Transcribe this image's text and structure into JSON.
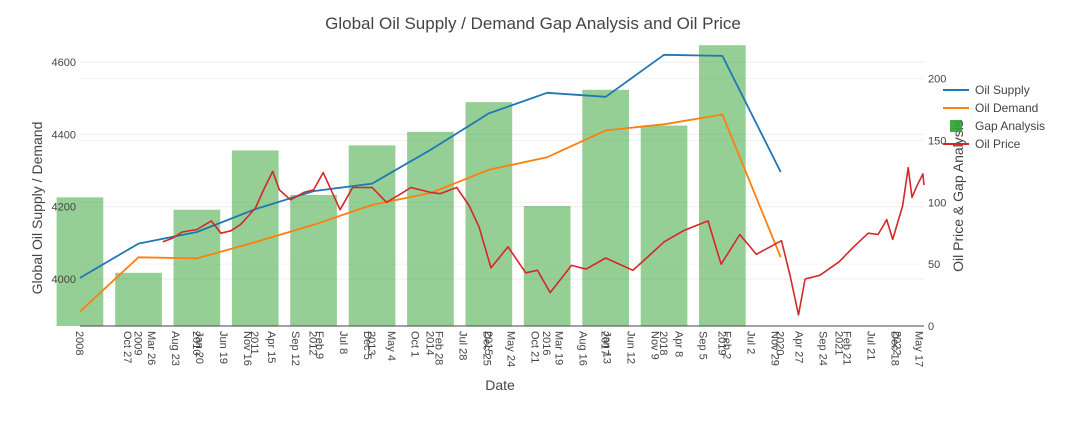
{
  "chart_data": {
    "type": "bar+line",
    "title": "Global Oil Supply / Demand Gap Analysis and Oil Price",
    "xlabel": "Date",
    "ylabel_left": "Global Oil Supply / Demand",
    "ylabel_right": "Oil Price & Gap Analysis",
    "x_range": [
      "2008-01-01",
      "2022-06-15"
    ],
    "y_left_range": [
      3870,
      4650
    ],
    "y_left_ticks": [
      4000,
      4200,
      4400,
      4600
    ],
    "y_right_range": [
      0,
      228
    ],
    "y_right_ticks": [
      0,
      50,
      100,
      150,
      200
    ],
    "grid": true,
    "legend_position": "top-right",
    "x_tick_labels": [
      {
        "date": "2008-01-01",
        "label": "2008"
      },
      {
        "date": "2008-10-27",
        "label": "Oct 27"
      },
      {
        "date": "2009-01-01",
        "label": "2009"
      },
      {
        "date": "2009-03-26",
        "label": "Mar 26"
      },
      {
        "date": "2009-08-23",
        "label": "Aug 23"
      },
      {
        "date": "2010-01-01",
        "label": "2010"
      },
      {
        "date": "2010-01-20",
        "label": "Jan 20"
      },
      {
        "date": "2010-06-19",
        "label": "Jun 19"
      },
      {
        "date": "2010-11-16",
        "label": "Nov 16"
      },
      {
        "date": "2011-01-01",
        "label": "2011"
      },
      {
        "date": "2011-04-15",
        "label": "Apr 15"
      },
      {
        "date": "2011-09-12",
        "label": "Sep 12"
      },
      {
        "date": "2012-01-01",
        "label": "2012"
      },
      {
        "date": "2012-02-09",
        "label": "Feb 9"
      },
      {
        "date": "2012-07-08",
        "label": "Jul 8"
      },
      {
        "date": "2012-12-05",
        "label": "Dec 5"
      },
      {
        "date": "2013-01-01",
        "label": "2013"
      },
      {
        "date": "2013-05-04",
        "label": "May 4"
      },
      {
        "date": "2013-10-01",
        "label": "Oct 1"
      },
      {
        "date": "2014-01-01",
        "label": "2014"
      },
      {
        "date": "2014-02-28",
        "label": "Feb 28"
      },
      {
        "date": "2014-07-28",
        "label": "Jul 28"
      },
      {
        "date": "2014-12-25",
        "label": "Dec 25"
      },
      {
        "date": "2015-01-01",
        "label": "2015"
      },
      {
        "date": "2015-05-24",
        "label": "May 24"
      },
      {
        "date": "2015-10-21",
        "label": "Oct 21"
      },
      {
        "date": "2016-01-01",
        "label": "2016"
      },
      {
        "date": "2016-03-19",
        "label": "Mar 19"
      },
      {
        "date": "2016-08-16",
        "label": "Aug 16"
      },
      {
        "date": "2017-01-01",
        "label": "2017"
      },
      {
        "date": "2017-01-13",
        "label": "Jan 13"
      },
      {
        "date": "2017-06-12",
        "label": "Jun 12"
      },
      {
        "date": "2017-11-09",
        "label": "Nov 9"
      },
      {
        "date": "2018-01-01",
        "label": "2018"
      },
      {
        "date": "2018-04-08",
        "label": "Apr 8"
      },
      {
        "date": "2018-09-05",
        "label": "Sep 5"
      },
      {
        "date": "2019-01-01",
        "label": "2019"
      },
      {
        "date": "2019-02-02",
        "label": "Feb 2"
      },
      {
        "date": "2019-07-02",
        "label": "Jul 2"
      },
      {
        "date": "2019-11-29",
        "label": "Nov 29"
      },
      {
        "date": "2020-01-01",
        "label": "2020"
      },
      {
        "date": "2020-04-27",
        "label": "Apr 27"
      },
      {
        "date": "2020-09-24",
        "label": "Sep 24"
      },
      {
        "date": "2021-01-01",
        "label": "2021"
      },
      {
        "date": "2021-02-21",
        "label": "Feb 21"
      },
      {
        "date": "2021-07-21",
        "label": "Jul 21"
      },
      {
        "date": "2021-12-18",
        "label": "Dec 18"
      },
      {
        "date": "2022-01-01",
        "label": "2022"
      },
      {
        "date": "2022-05-17",
        "label": "May 17"
      }
    ],
    "series": [
      {
        "name": "Oil Supply",
        "kind": "line",
        "axis": "left",
        "color": "#1f77b4",
        "points": [
          {
            "x": "2008-01-01",
            "y": 4003
          },
          {
            "x": "2009-01-01",
            "y": 4098
          },
          {
            "x": "2010-01-01",
            "y": 4130
          },
          {
            "x": "2011-01-01",
            "y": 4193
          },
          {
            "x": "2012-01-01",
            "y": 4243
          },
          {
            "x": "2013-01-01",
            "y": 4264
          },
          {
            "x": "2014-01-01",
            "y": 4357
          },
          {
            "x": "2015-01-01",
            "y": 4458
          },
          {
            "x": "2016-01-01",
            "y": 4515
          },
          {
            "x": "2017-01-01",
            "y": 4504
          },
          {
            "x": "2018-01-01",
            "y": 4620
          },
          {
            "x": "2019-01-01",
            "y": 4617
          },
          {
            "x": "2020-01-01",
            "y": 4296
          }
        ]
      },
      {
        "name": "Oil Demand",
        "kind": "line",
        "axis": "left",
        "color": "#ff7f0e",
        "points": [
          {
            "x": "2008-01-01",
            "y": 3910
          },
          {
            "x": "2009-01-01",
            "y": 4060
          },
          {
            "x": "2010-01-01",
            "y": 4057
          },
          {
            "x": "2011-01-01",
            "y": 4102
          },
          {
            "x": "2012-01-01",
            "y": 4150
          },
          {
            "x": "2013-01-01",
            "y": 4205
          },
          {
            "x": "2014-01-01",
            "y": 4238
          },
          {
            "x": "2015-01-01",
            "y": 4302
          },
          {
            "x": "2016-01-01",
            "y": 4337
          },
          {
            "x": "2017-01-01",
            "y": 4411
          },
          {
            "x": "2018-01-01",
            "y": 4428
          },
          {
            "x": "2019-01-01",
            "y": 4455
          },
          {
            "x": "2020-01-01",
            "y": 4060
          }
        ]
      },
      {
        "name": "Gap Analysis",
        "kind": "bar",
        "axis": "right",
        "color": "#2ca02c",
        "points": [
          {
            "x": "2008-01-01",
            "y": 104
          },
          {
            "x": "2009-01-01",
            "y": 43
          },
          {
            "x": "2010-01-01",
            "y": 94
          },
          {
            "x": "2011-01-01",
            "y": 142
          },
          {
            "x": "2012-01-01",
            "y": 106
          },
          {
            "x": "2013-01-01",
            "y": 146
          },
          {
            "x": "2014-01-01",
            "y": 157
          },
          {
            "x": "2015-01-01",
            "y": 181
          },
          {
            "x": "2016-01-01",
            "y": 97
          },
          {
            "x": "2017-01-01",
            "y": 191
          },
          {
            "x": "2018-01-01",
            "y": 162
          },
          {
            "x": "2019-01-01",
            "y": 227
          }
        ]
      },
      {
        "name": "Oil Price",
        "kind": "line",
        "axis": "right",
        "color": "#d62728",
        "points": [
          {
            "x": "2009-06-01",
            "y": 68
          },
          {
            "x": "2009-08-01",
            "y": 71
          },
          {
            "x": "2009-10-01",
            "y": 76
          },
          {
            "x": "2010-01-01",
            "y": 78
          },
          {
            "x": "2010-04-01",
            "y": 85
          },
          {
            "x": "2010-06-01",
            "y": 75
          },
          {
            "x": "2010-08-01",
            "y": 77
          },
          {
            "x": "2010-10-01",
            "y": 82
          },
          {
            "x": "2011-01-01",
            "y": 95
          },
          {
            "x": "2011-03-01",
            "y": 112
          },
          {
            "x": "2011-04-20",
            "y": 125
          },
          {
            "x": "2011-06-01",
            "y": 110
          },
          {
            "x": "2011-08-10",
            "y": 102
          },
          {
            "x": "2011-11-01",
            "y": 108
          },
          {
            "x": "2012-01-01",
            "y": 110
          },
          {
            "x": "2012-03-01",
            "y": 124
          },
          {
            "x": "2012-06-15",
            "y": 94
          },
          {
            "x": "2012-09-01",
            "y": 112
          },
          {
            "x": "2013-01-01",
            "y": 112
          },
          {
            "x": "2013-04-01",
            "y": 100
          },
          {
            "x": "2013-07-01",
            "y": 107
          },
          {
            "x": "2013-09-01",
            "y": 112
          },
          {
            "x": "2014-01-01",
            "y": 108
          },
          {
            "x": "2014-03-01",
            "y": 107
          },
          {
            "x": "2014-06-15",
            "y": 112
          },
          {
            "x": "2014-09-01",
            "y": 97
          },
          {
            "x": "2014-11-01",
            "y": 80
          },
          {
            "x": "2015-01-15",
            "y": 47
          },
          {
            "x": "2015-05-01",
            "y": 64
          },
          {
            "x": "2015-08-20",
            "y": 43
          },
          {
            "x": "2015-11-01",
            "y": 45
          },
          {
            "x": "2016-01-20",
            "y": 27
          },
          {
            "x": "2016-06-01",
            "y": 49
          },
          {
            "x": "2016-09-01",
            "y": 46
          },
          {
            "x": "2017-01-01",
            "y": 55
          },
          {
            "x": "2017-06-20",
            "y": 45
          },
          {
            "x": "2017-10-01",
            "y": 57
          },
          {
            "x": "2018-01-01",
            "y": 68
          },
          {
            "x": "2018-05-01",
            "y": 77
          },
          {
            "x": "2018-10-03",
            "y": 85
          },
          {
            "x": "2018-12-24",
            "y": 50
          },
          {
            "x": "2019-04-20",
            "y": 74
          },
          {
            "x": "2019-08-01",
            "y": 58
          },
          {
            "x": "2020-01-06",
            "y": 69
          },
          {
            "x": "2020-03-01",
            "y": 40
          },
          {
            "x": "2020-04-21",
            "y": 9
          },
          {
            "x": "2020-06-01",
            "y": 38
          },
          {
            "x": "2020-09-01",
            "y": 41
          },
          {
            "x": "2021-01-01",
            "y": 52
          },
          {
            "x": "2021-04-01",
            "y": 64
          },
          {
            "x": "2021-07-01",
            "y": 75
          },
          {
            "x": "2021-09-01",
            "y": 74
          },
          {
            "x": "2021-10-25",
            "y": 86
          },
          {
            "x": "2021-12-01",
            "y": 70
          },
          {
            "x": "2022-02-01",
            "y": 97
          },
          {
            "x": "2022-03-08",
            "y": 128
          },
          {
            "x": "2022-04-01",
            "y": 104
          },
          {
            "x": "2022-05-01",
            "y": 113
          },
          {
            "x": "2022-06-08",
            "y": 123
          },
          {
            "x": "2022-06-15",
            "y": 114
          }
        ]
      }
    ]
  }
}
